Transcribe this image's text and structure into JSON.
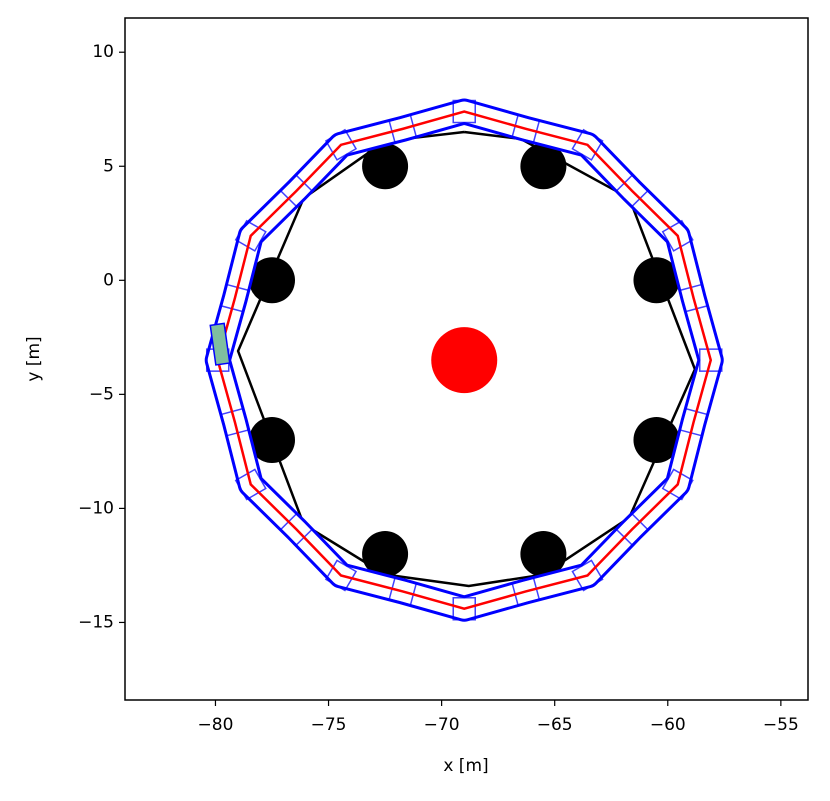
{
  "chart_data": {
    "type": "trajectory",
    "xlabel": "x [m]",
    "ylabel": "y [m]",
    "xlim": [
      -84,
      -53.8
    ],
    "ylim": [
      -18.4,
      11.5
    ],
    "xticks": [
      {
        "value": -80,
        "label": "−80"
      },
      {
        "value": -75,
        "label": "−75"
      },
      {
        "value": -70,
        "label": "−70"
      },
      {
        "value": -65,
        "label": "−65"
      },
      {
        "value": -60,
        "label": "−60"
      },
      {
        "value": -55,
        "label": "−55"
      }
    ],
    "yticks": [
      {
        "value": -15,
        "label": "−15"
      },
      {
        "value": -10,
        "label": "−10"
      },
      {
        "value": -5,
        "label": "−5"
      },
      0,
      5,
      10
    ],
    "boundary": {
      "color": "#000000",
      "x": [
        -69,
        -66.5,
        -61.7,
        -58.8,
        -61.7,
        -65.5,
        -68.8,
        -72.5,
        -76.1,
        -79,
        -76.1,
        -72.5,
        -69
      ],
      "y": [
        6.5,
        6.2,
        3.6,
        -3.9,
        -10.4,
        -12.9,
        -13.4,
        -12.9,
        -10.7,
        -3.1,
        3.6,
        6.1,
        6.5
      ]
    },
    "obstacles": {
      "color": "#000000",
      "x": [
        -72.5,
        -65.5,
        -60.5,
        -60.5,
        -65.5,
        -72.5,
        -77.5,
        -77.5
      ],
      "y": [
        5,
        5,
        0,
        -7,
        -12,
        -12,
        -7,
        0
      ]
    },
    "goal": {
      "color": "#ff0000",
      "x": -69,
      "y": -3.5
    },
    "path": {
      "color": "#ff0000",
      "box_color": "#0000ff",
      "x": [
        -79.9,
        -79.14,
        -78.44,
        -76.42,
        -74.45,
        -71.72,
        -69,
        -66.28,
        -63.55,
        -61.58,
        -59.56,
        -58.86,
        -58.1,
        -58.86,
        -59.56,
        -61.58,
        -63.55,
        -66.28,
        -69,
        -71.72,
        -74.45,
        -76.42,
        -78.44,
        -79.14
      ],
      "y": [
        -3.5,
        -0.78,
        1.95,
        3.92,
        5.94,
        6.64,
        7.4,
        6.64,
        5.94,
        3.92,
        1.95,
        -0.78,
        -3.5,
        -6.22,
        -8.95,
        -10.92,
        -12.94,
        -13.64,
        -14.4,
        -13.64,
        -12.94,
        -10.92,
        -8.95,
        -6.22
      ]
    },
    "start": {
      "color": "#7fbf9f",
      "x": -79.8,
      "y": -2.8
    }
  }
}
